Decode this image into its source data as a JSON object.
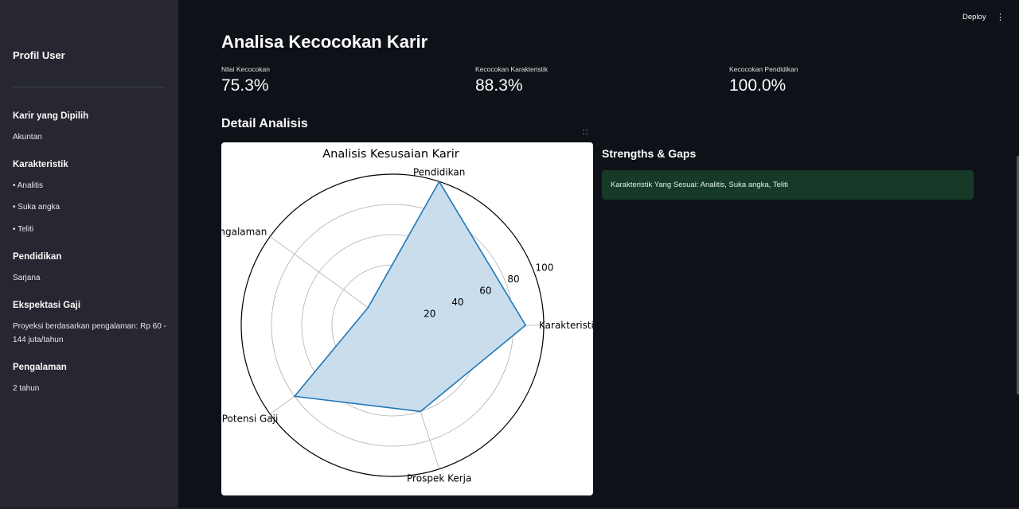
{
  "sidebar": {
    "title": "Profil User",
    "career_heading": "Karir yang Dipilih",
    "career_value": "Akuntan",
    "traits_heading": "Karakteristik",
    "traits": [
      "• Analitis",
      "• Suka angka",
      "• Teliti"
    ],
    "education_heading": "Pendidikan",
    "education_value": "Sarjana",
    "salary_heading": "Ekspektasi Gaji",
    "salary_value": "Proyeksi berdasarkan pengalaman: Rp 60 - 144 juta/tahun",
    "experience_heading": "Pengalaman",
    "experience_value": "2 tahun"
  },
  "toolbar": {
    "deploy_label": "Deploy",
    "menu_icon": "⋮"
  },
  "main": {
    "title": "Analisa Kecocokan Karir",
    "metrics": [
      {
        "label": "Nilai Kecocokan",
        "value": "75.3%"
      },
      {
        "label": "Kecocokan Karakteristik",
        "value": "88.3%"
      },
      {
        "label": "Kecocokan Pendidikan",
        "value": "100.0%"
      }
    ],
    "detail_title": "Detail Analisis",
    "strengths_title": "Strengths & Gaps",
    "strengths_alert": "Karakteristik Yang Sesuai: Analitis, Suka angka, Teliti"
  },
  "chart_data": {
    "type": "radar",
    "title": "Analisis Kesusaian Karir",
    "categories": [
      "Karakteristik",
      "Pendidikan",
      "Pengalaman",
      "Potensi Gaji",
      "Prospek Kerja"
    ],
    "values": [
      88,
      100,
      20,
      80,
      60
    ],
    "rticks": [
      20,
      40,
      60,
      80,
      100
    ],
    "rlim": [
      0,
      100
    ],
    "line_color": "#1f77b4",
    "fill_color": "#c6dbec"
  }
}
